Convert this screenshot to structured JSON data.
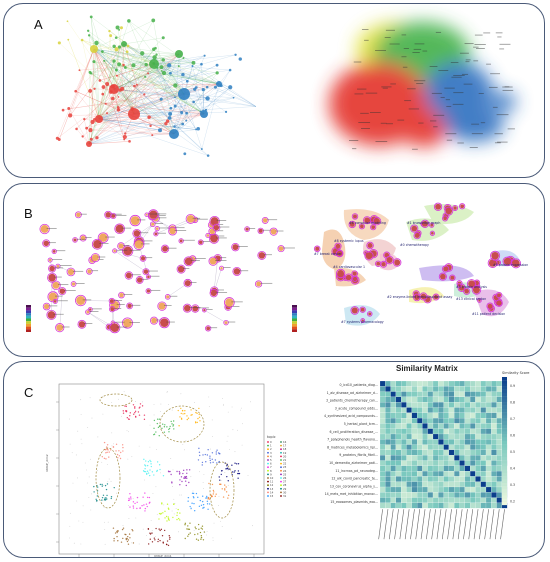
{
  "panels": {
    "a": {
      "label": "A"
    },
    "b": {
      "label": "B"
    },
    "c": {
      "label": "C"
    }
  },
  "panel_b": {
    "cluster_labels": [
      "#6 computer modeling",
      "#8 systemic lupus",
      "#1 knowledge graph",
      "#7 breast cancer",
      "#4 cardiovascular 1",
      "#0 chemotherapy",
      "#2 enzyme-linked immunosorbent assay",
      "#13 clinical proton",
      "#3 protein analysis",
      "#5 protein expression",
      "#11 patient decision",
      "#7 systems pharmacology"
    ]
  },
  "panel_c": {
    "matrix_title": "Similarity Matrix",
    "colorbar_title": "Similarity Score",
    "colorbar_ticks": [
      "0.9",
      "0.8",
      "0.7",
      "0.6",
      "0.5",
      "0.4",
      "0.3",
      "0.2"
    ],
    "row_labels": [
      "0_icd10_patients_diag...",
      "1_alz_disease_ad_alzheimer_d...",
      "2_patients_chemotherapy_can...",
      "3_acute_compound_odds...",
      "4_synthesized_acid_compounds...",
      "5_herbal_plant_tcm...",
      "6_cell_proliferation_disease_...",
      "7_polyphenols_health_flavono...",
      "8_matrices_metabolomics_lipi...",
      "9_proteins_fibrils_fibril...",
      "10_dementia_alzheimer_pati...",
      "11_lncrnas_pd_neurodeg...",
      "12_alk_covid_pancreatic_te...",
      "13_cov_coronavirus_alpha_s...",
      "14_mets_met_inhibition_monoc...",
      "15_exosomes_plasmids_exo..."
    ],
    "legend_title": "topic",
    "legend_items": [
      "0",
      "1",
      "2",
      "3",
      "4",
      "5",
      "6",
      "7",
      "8",
      "9",
      "10",
      "11",
      "12",
      "13",
      "14",
      "15",
      "16",
      "17",
      "18",
      "19",
      "20",
      "21",
      "22",
      "23",
      "24",
      "25",
      "26",
      "27",
      "28",
      "29",
      "30",
      "31"
    ],
    "scatter_xlabel": "UMAP_dim1",
    "scatter_ylabel": "UMAP_dim2"
  },
  "colors": {
    "border": "#4a5a78",
    "network_red": "#e8423c",
    "network_green": "#46b04a",
    "network_blue": "#2f7fc1",
    "network_yellow": "#d8d23c",
    "citespace_pink": "#d63ad8",
    "heat_low": "#f4fbe0",
    "heat_high": "#0b3f8c"
  }
}
